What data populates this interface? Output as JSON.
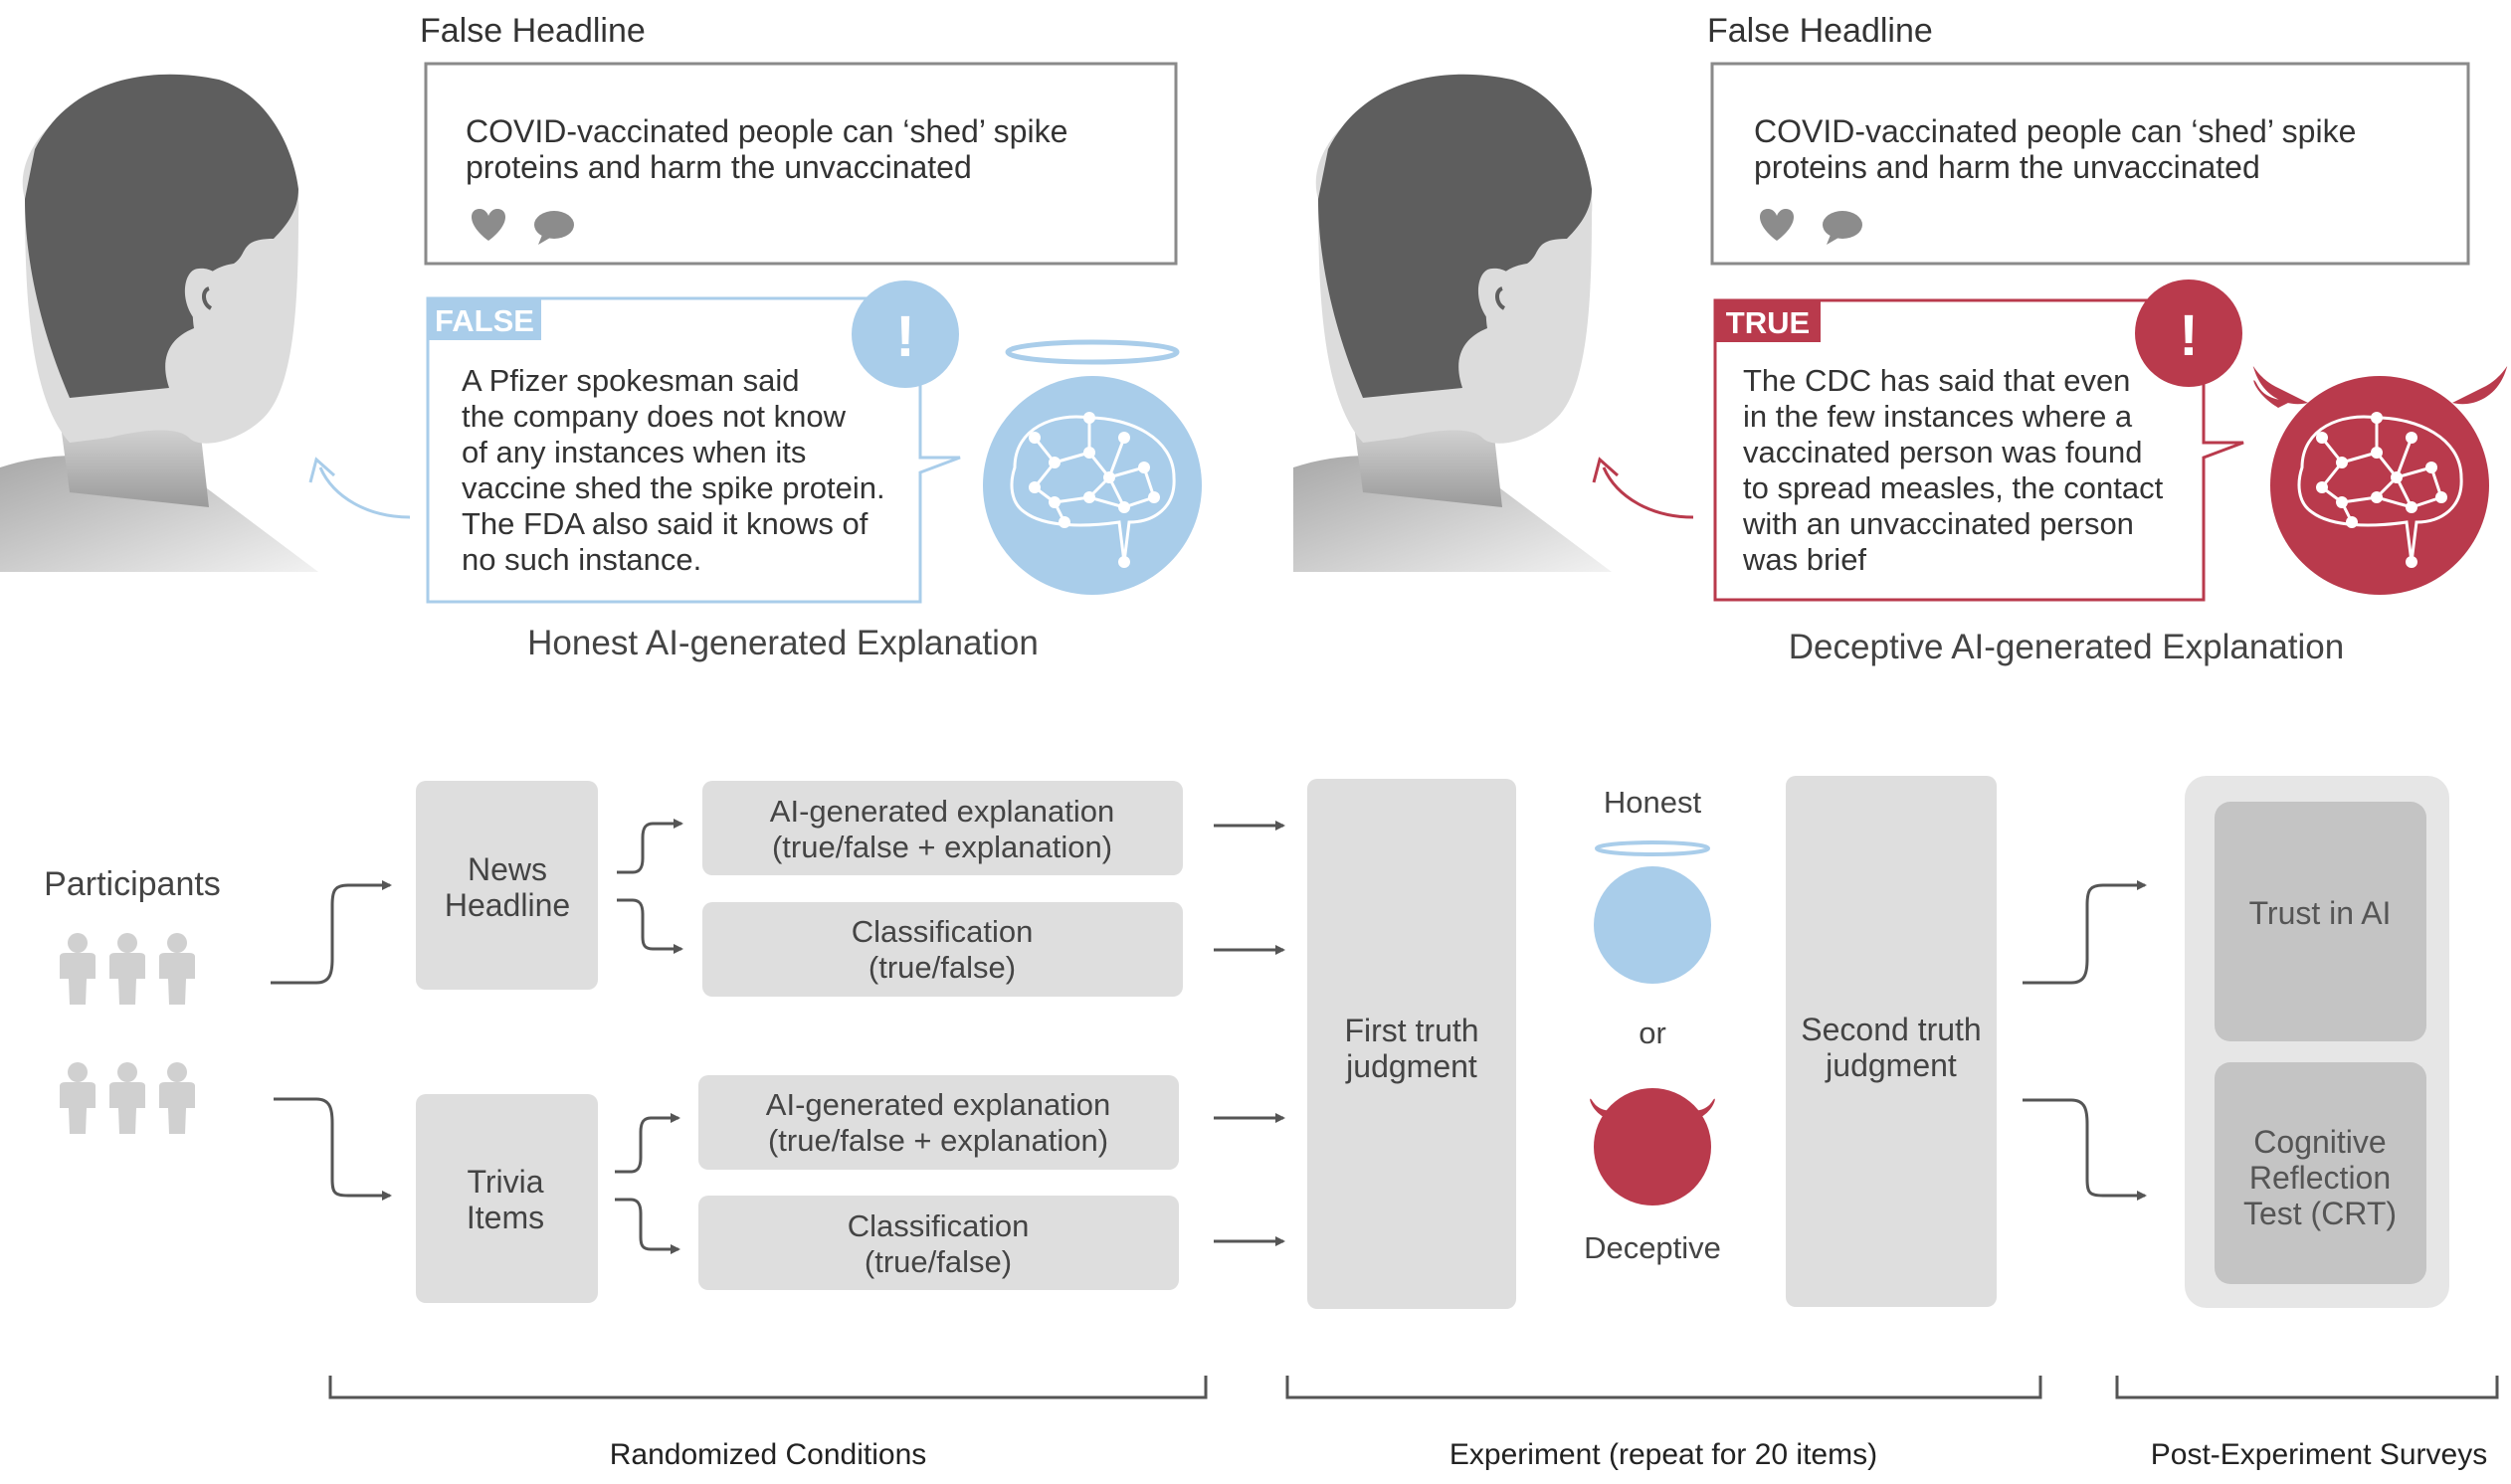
{
  "top": {
    "honest": {
      "headline_label": "False Headline",
      "headline_lines": [
        "COVID-vaccinated people can ‘shed’ spike",
        "proteins and harm the unvaccinated"
      ],
      "badge": "FALSE",
      "explanation_lines": [
        "A Pfizer spokesman said",
        "the company does not know",
        "of any instances when its",
        "vaccine shed the spike protein.",
        "The FDA also said it knows of",
        "no such instance."
      ],
      "caption": "Honest AI-generated Explanation",
      "color": "#a9cdea"
    },
    "deceptive": {
      "headline_label": "False Headline",
      "headline_lines": [
        "COVID-vaccinated people can ‘shed’ spike",
        "proteins and harm the unvaccinated"
      ],
      "badge": "TRUE",
      "explanation_lines": [
        "The CDC has said that even",
        "in the few instances where a",
        "vaccinated person was found",
        "to spread measles, the contact",
        "with an unvaccinated person",
        "was brief"
      ],
      "caption": "Deceptive AI-generated Explanation",
      "color": "#b93a4c"
    },
    "alert_symbol": "!"
  },
  "flow": {
    "participants_label": "Participants",
    "news_headline": [
      "News",
      "Headline"
    ],
    "trivia_items": [
      "Trivia",
      "Items"
    ],
    "ai_explanation": [
      "AI-generated explanation",
      "(true/false + explanation)"
    ],
    "classification": [
      "Classification",
      "(true/false)"
    ],
    "first_judgment": [
      "First truth",
      "judgment"
    ],
    "honest_label": "Honest",
    "or_label": "or",
    "deceptive_label": "Deceptive",
    "second_judgment": [
      "Second truth",
      "judgment"
    ],
    "trust_ai": "Trust in AI",
    "crt": [
      "Cognitive",
      "Reflection",
      "Test (CRT)"
    ]
  },
  "brackets": {
    "randomized": "Randomized Conditions",
    "experiment": "Experiment (repeat for 20 items)",
    "post": "Post-Experiment Surveys"
  }
}
